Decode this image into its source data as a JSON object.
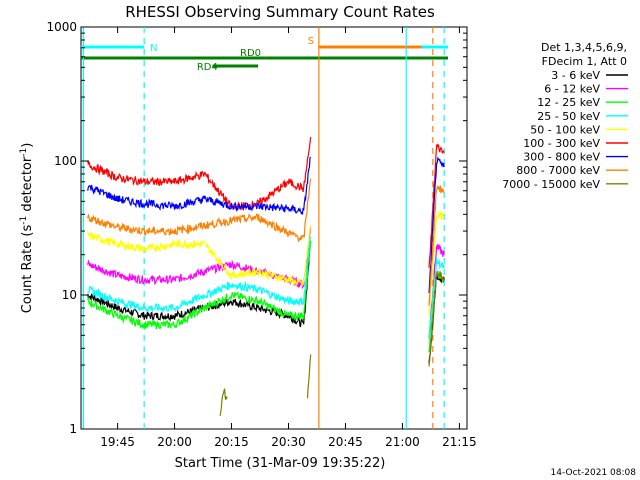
{
  "chart_data": {
    "type": "line",
    "title": "RHESSI Observing Summary Count Rates",
    "xlabel": "Start Time (31-Mar-09 19:35:22)",
    "ylabel_main": "Count Rate (s",
    "ylabel_sup1": "-1",
    "ylabel_mid": " detector",
    "ylabel_sup2": "-1",
    "ylabel_end": ")",
    "y_scale": "log",
    "ylim": [
      1,
      1000
    ],
    "xlim": [
      "19:35:22",
      "21:17:00"
    ],
    "x_tick_labels": [
      "19:45",
      "20:00",
      "20:15",
      "20:30",
      "20:45",
      "21:00",
      "21:15"
    ],
    "y_tick_labels": [
      "1",
      "10",
      "100",
      "1000"
    ],
    "legend_header": [
      "Det 1,3,4,5,6,9,",
      "FDecim 1, Att 0"
    ],
    "legend_position": "right",
    "series": [
      {
        "name": "3 - 6 keV",
        "color": "#000000",
        "x": [
          "19:37",
          "19:45",
          "19:52",
          "20:00",
          "20:08",
          "20:15",
          "20:22",
          "20:30",
          "20:34",
          "20:36",
          "21:07",
          "21:09",
          "21:11"
        ],
        "y": [
          10,
          8,
          7,
          7,
          8,
          9,
          8,
          7,
          6,
          30,
          3,
          14,
          13
        ]
      },
      {
        "name": "6 - 12 keV",
        "color": "#ff00ff",
        "x": [
          "19:37",
          "19:45",
          "19:52",
          "20:00",
          "20:08",
          "20:15",
          "20:22",
          "20:30",
          "20:34",
          "20:36",
          "21:07",
          "21:09",
          "21:11"
        ],
        "y": [
          17,
          14,
          13,
          13,
          15,
          17,
          15,
          13,
          12,
          35,
          5,
          23,
          20
        ]
      },
      {
        "name": "12 - 25 keV",
        "color": "#00ff00",
        "x": [
          "19:37",
          "19:45",
          "19:52",
          "20:00",
          "20:08",
          "20:15",
          "20:22",
          "20:30",
          "20:34",
          "20:36",
          "21:07",
          "21:09",
          "21:11"
        ],
        "y": [
          9,
          7,
          6,
          6,
          8,
          10,
          9,
          7,
          7,
          30,
          4,
          15,
          13
        ]
      },
      {
        "name": "25 - 50 keV",
        "color": "#00ffff",
        "x": [
          "19:37",
          "19:45",
          "19:52",
          "20:00",
          "20:08",
          "20:15",
          "20:22",
          "20:30",
          "20:34",
          "20:36",
          "21:07",
          "21:09",
          "21:11"
        ],
        "y": [
          11,
          9,
          8,
          8,
          10,
          12,
          11,
          9,
          9,
          32,
          5,
          18,
          16
        ]
      },
      {
        "name": "50 - 100 keV",
        "color": "#ffff00",
        "x": [
          "19:37",
          "19:45",
          "19:52",
          "20:00",
          "20:08",
          "20:15",
          "20:22",
          "20:30",
          "20:34",
          "20:36",
          "21:07",
          "21:09",
          "21:11"
        ],
        "y": [
          28,
          24,
          22,
          24,
          24,
          14,
          15,
          13,
          12,
          38,
          7,
          40,
          38
        ]
      },
      {
        "name": "100 - 300 keV",
        "color": "#ff0000",
        "x": [
          "19:37",
          "19:45",
          "19:52",
          "20:00",
          "20:08",
          "20:15",
          "20:22",
          "20:30",
          "20:34",
          "20:36",
          "21:07",
          "21:09",
          "21:11"
        ],
        "y": [
          95,
          75,
          70,
          70,
          80,
          45,
          48,
          70,
          62,
          160,
          15,
          130,
          115
        ]
      },
      {
        "name": "300 - 800 keV",
        "color": "#0000ff",
        "x": [
          "19:37",
          "19:45",
          "19:52",
          "20:00",
          "20:08",
          "20:15",
          "20:22",
          "20:30",
          "20:34",
          "20:36",
          "21:07",
          "21:09",
          "21:11"
        ],
        "y": [
          65,
          52,
          48,
          46,
          52,
          46,
          46,
          44,
          42,
          120,
          10,
          100,
          90
        ]
      },
      {
        "name": "800 - 7000 keV",
        "color": "#ff8000",
        "x": [
          "19:37",
          "19:45",
          "19:52",
          "20:00",
          "20:08",
          "20:15",
          "20:22",
          "20:30",
          "20:34",
          "20:36",
          "21:07",
          "21:09",
          "21:11"
        ],
        "y": [
          38,
          32,
          30,
          30,
          33,
          36,
          38,
          29,
          26,
          85,
          8,
          65,
          58
        ]
      },
      {
        "name": "7000 - 15000 keV",
        "color": "#808000",
        "x": [
          "20:12",
          "20:13",
          "20:14",
          "20:35",
          "20:36",
          "21:07",
          "21:09",
          "21:11"
        ],
        "y": [
          1.3,
          2.0,
          1.5,
          1.8,
          4.0,
          3.0,
          15,
          13
        ]
      }
    ],
    "flag_bars": [
      {
        "label": "N",
        "color": "#00ffff",
        "level": "top",
        "spans": [
          [
            "19:35:22",
            "19:52"
          ],
          [
            "21:01",
            "21:12"
          ]
        ]
      },
      {
        "label": "S",
        "color": "#ff8000",
        "level": "top",
        "spans": [
          [
            "20:38",
            "21:05"
          ]
        ]
      },
      {
        "label": "RD0",
        "color": "#008000",
        "level": "mid",
        "spans": [
          [
            "19:35:22",
            "20:24"
          ],
          [
            "20:24",
            "21:12"
          ]
        ]
      },
      {
        "label": "RD4",
        "color": "#008000",
        "level": "low",
        "spans": [
          [
            "20:10",
            "20:22"
          ]
        ]
      }
    ],
    "vertical_lines": [
      {
        "x": "19:36",
        "color": "#00ffff",
        "style": "solid"
      },
      {
        "x": "19:52",
        "color": "#00ffff",
        "style": "dashed"
      },
      {
        "x": "20:38",
        "color": "#ff8000",
        "style": "solid"
      },
      {
        "x": "21:01",
        "color": "#00ffff",
        "style": "solid"
      },
      {
        "x": "21:08",
        "color": "#ff8000",
        "style": "dashed"
      },
      {
        "x": "21:11",
        "color": "#00ffff",
        "style": "dashed"
      }
    ],
    "timestamp": "14-Oct-2021 08:08"
  }
}
